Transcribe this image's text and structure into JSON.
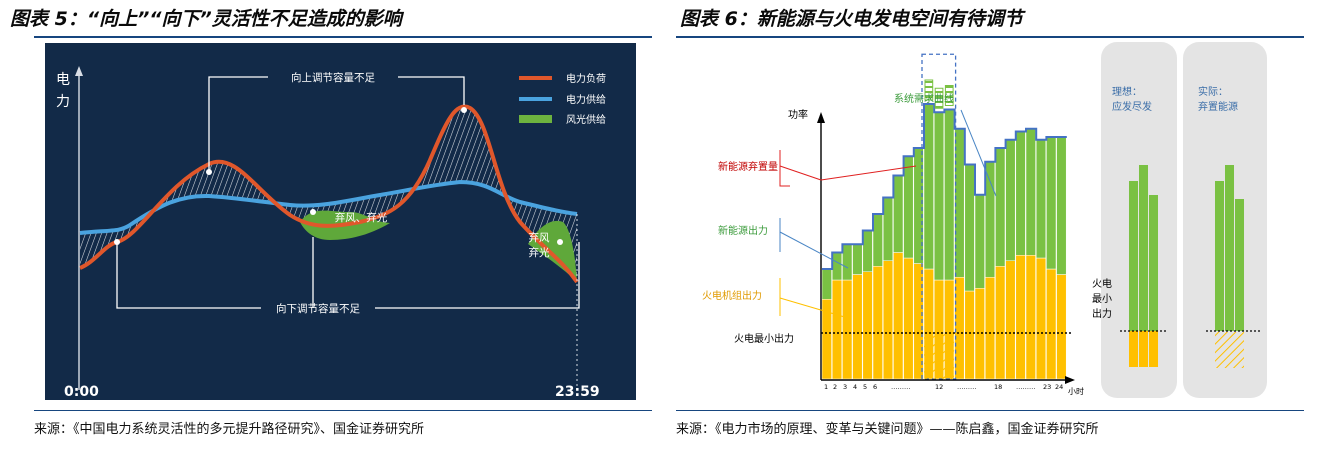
{
  "fig5": {
    "title": "图表 5：“向上”“向下”灵活性不足造成的影响",
    "source": "来源：《中国电力系统灵活性的多元提升路径研究》、国金证券研究所",
    "chart_data": {
      "type": "line",
      "ylabel": "电力",
      "x_start": "0:00",
      "x_end": "23:59",
      "series": [
        {
          "name": "电力负荷",
          "color": "#e0572b"
        },
        {
          "name": "电力供给",
          "color": "#4aa3df"
        },
        {
          "name": "风光供给",
          "color": "#6db33f"
        }
      ],
      "annotations": [
        "向上调节容量不足",
        "向下调节容量不足",
        "弃风、弃光",
        "弃风",
        "弃光"
      ]
    }
  },
  "fig6": {
    "title": "图表 6：新能源与火电发电空间有待调节",
    "source": "来源：《电力市场的原理、变革与关键问题》——陈启鑫，国金证券研究所",
    "chart_data": {
      "type": "bar",
      "ylabel": "功率",
      "xlabel": "小时",
      "x_ticks": [
        "1",
        "2",
        "3",
        "4",
        "5",
        "6",
        "………",
        "12",
        "………",
        "18",
        "………",
        "23",
        "24"
      ],
      "legend": [
        "新能源弃置量",
        "新能源出力",
        "火电机组出力",
        "火电最小出力"
      ],
      "curve_label": "系统需求曲线",
      "side_boxes": [
        {
          "title": "理想：",
          "subtitle": "应发尽发"
        },
        {
          "title": "实际：",
          "subtitle": "弃置能源"
        }
      ],
      "side_label": "火电最小出力",
      "thermal": [
        29,
        36,
        36,
        38,
        39,
        41,
        43,
        46,
        44,
        42,
        40,
        36,
        36,
        37,
        32,
        33,
        37,
        41,
        43,
        45,
        45,
        44,
        40,
        38
      ],
      "renewable": [
        11,
        10,
        13,
        11,
        15,
        19,
        23,
        28,
        37,
        42,
        60,
        61,
        62,
        54,
        46,
        34,
        42,
        43,
        44,
        45,
        46,
        43,
        48,
        50
      ],
      "colors": {
        "renewable": "#7ac143",
        "thermal": "#ffc000",
        "demand": "#4472c4",
        "curtail_line": "#e02020",
        "renew_line": "#4a86c5",
        "thermal_line": "#ffc000"
      }
    }
  }
}
